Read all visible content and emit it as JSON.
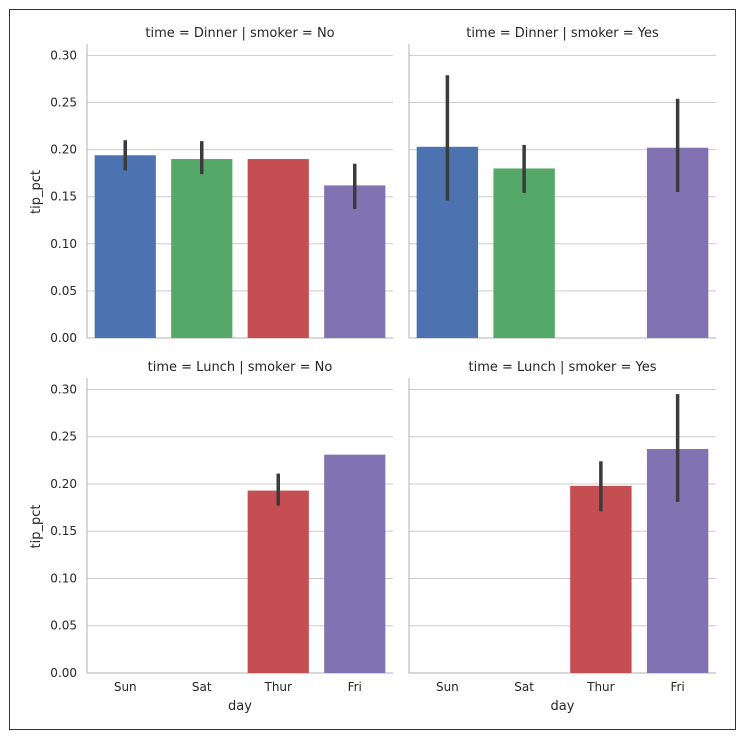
{
  "chart_data": {
    "type": "bar",
    "categories": [
      "Sun",
      "Sat",
      "Thur",
      "Fri"
    ],
    "xlabel": "day",
    "ylabel": "tip_pct",
    "ylim": [
      0,
      0.31
    ],
    "yticks": [
      "0.00",
      "0.05",
      "0.10",
      "0.15",
      "0.20",
      "0.25",
      "0.30"
    ],
    "grid": true,
    "colors": [
      "#4c72b0",
      "#55a868",
      "#c44e52",
      "#8172b2"
    ],
    "panels": [
      {
        "title": "time = Dinner | smoker = No",
        "values": [
          0.194,
          0.19,
          0.19,
          0.162
        ],
        "ci": [
          [
            0.178,
            0.21
          ],
          [
            0.174,
            0.209
          ],
          [
            null,
            null
          ],
          [
            0.137,
            0.185
          ]
        ]
      },
      {
        "title": "time = Dinner | smoker = Yes",
        "values": [
          0.203,
          0.18,
          null,
          0.202
        ],
        "ci": [
          [
            0.146,
            0.279
          ],
          [
            0.154,
            0.205
          ],
          [
            null,
            null
          ],
          [
            0.155,
            0.254
          ]
        ]
      },
      {
        "title": "time = Lunch | smoker = No",
        "values": [
          null,
          null,
          0.193,
          0.231
        ],
        "ci": [
          [
            null,
            null
          ],
          [
            null,
            null
          ],
          [
            0.177,
            0.211
          ],
          [
            null,
            null
          ]
        ]
      },
      {
        "title": "time = Lunch | smoker = Yes",
        "values": [
          null,
          null,
          0.198,
          0.237
        ],
        "ci": [
          [
            null,
            null
          ],
          [
            null,
            null
          ],
          [
            0.171,
            0.224
          ],
          [
            0.181,
            0.295
          ]
        ]
      }
    ]
  }
}
